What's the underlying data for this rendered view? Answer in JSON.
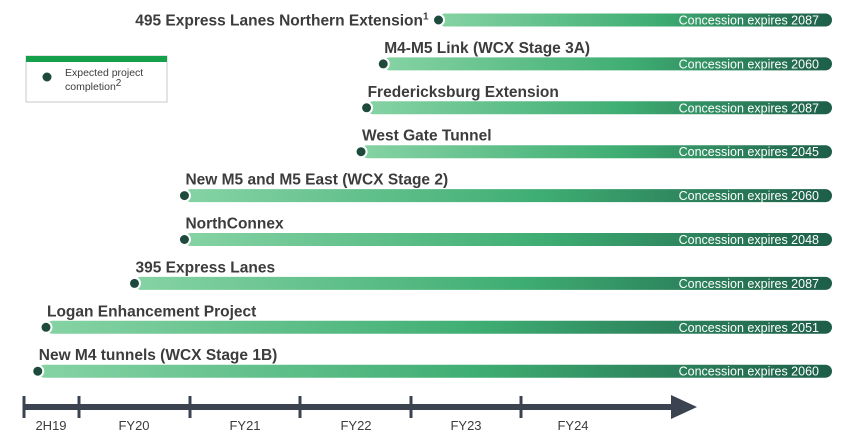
{
  "legend": {
    "line1": "Expected project",
    "line2": "completion",
    "superscript": "2"
  },
  "colors": {
    "bar_start": "#86d3a4",
    "bar_mid": "#3fae73",
    "bar_end": "#1d5e49",
    "marker_fill": "#1d4a3d",
    "axis": "#3b4350",
    "legend_bar": "#15a04c"
  },
  "chart_data": {
    "type": "timeline",
    "x_axis": {
      "ticks": [
        "2H19",
        "FY20",
        "FY21",
        "FY22",
        "FY23",
        "FY24"
      ]
    },
    "projects": [
      {
        "name": "495 Express Lanes Northern Extension",
        "superscript": "1",
        "completion": "FY23",
        "completion_fraction": 0.25,
        "expiry": "Concession expires 2087"
      },
      {
        "name": "M4-M5 Link (WCX Stage 3A)",
        "superscript": "",
        "completion": "FY22",
        "completion_fraction": 0.75,
        "expiry": "Concession expires 2060"
      },
      {
        "name": "Fredericksburg Extension",
        "superscript": "",
        "completion": "FY22",
        "completion_fraction": 0.6,
        "expiry": "Concession expires 2087"
      },
      {
        "name": "West Gate Tunnel",
        "superscript": "",
        "completion": "FY22",
        "completion_fraction": 0.55,
        "expiry": "Concession expires 2045"
      },
      {
        "name": "New M5 and M5 East (WCX Stage 2)",
        "superscript": "",
        "completion": "FY20",
        "completion_fraction": 0.95,
        "expiry": "Concession expires 2060"
      },
      {
        "name": "NorthConnex",
        "superscript": "",
        "completion": "FY20",
        "completion_fraction": 0.95,
        "expiry": "Concession expires 2048"
      },
      {
        "name": "395 Express Lanes",
        "superscript": "",
        "completion": "FY20",
        "completion_fraction": 0.5,
        "expiry": "Concession expires 2087"
      },
      {
        "name": "Logan Enhancement Project",
        "superscript": "",
        "completion": "2H19",
        "completion_fraction": 0.4,
        "expiry": "Concession expires 2051"
      },
      {
        "name": "New M4 tunnels (WCX Stage 1B)",
        "superscript": "",
        "completion": "2H19",
        "completion_fraction": 0.25,
        "expiry": "Concession expires 2060"
      }
    ]
  }
}
